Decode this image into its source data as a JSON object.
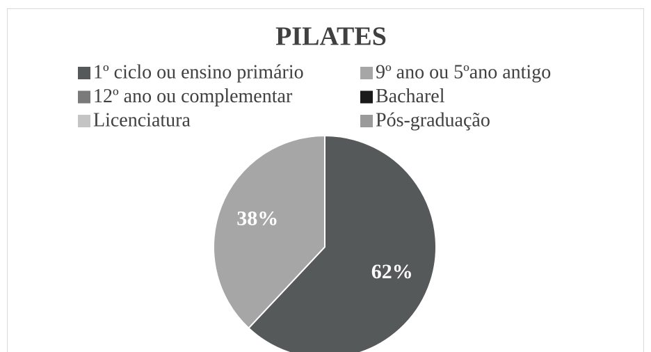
{
  "chart_data": {
    "type": "pie",
    "title": "PILATES",
    "categories": [
      "1º ciclo ou ensino primário",
      "9º ano ou 5ºano antigo",
      "12º ano ou complementar",
      "Bacharel",
      "Licenciatura",
      "Pós-graduação"
    ],
    "values": [
      62,
      38,
      0,
      0,
      0,
      0
    ],
    "value_labels": [
      "62%",
      "38%",
      null,
      null,
      null,
      null
    ],
    "colors": [
      "#56595a",
      "#a6a6a6",
      "#7a7a7a",
      "#1a1a1a",
      "#c4c4c4",
      "#9a9a9a"
    ],
    "legend": "top"
  }
}
